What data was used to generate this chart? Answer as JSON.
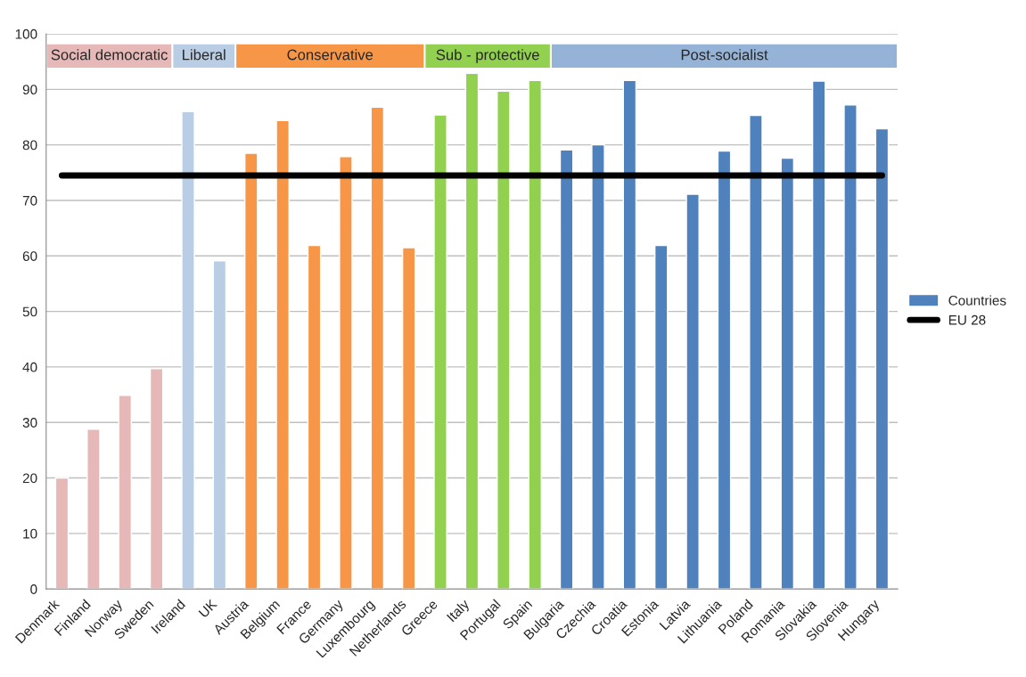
{
  "chart_data": {
    "type": "bar",
    "categories": [
      "Denmark",
      "Finland",
      "Norway",
      "Sweden",
      "Ireland",
      "UK",
      "Austria",
      "Belgium",
      "France",
      "Germany",
      "Luxembourg",
      "Netherlands",
      "Greece",
      "Italy",
      "Portugal",
      "Spain",
      "Bulgaria",
      "Czechia",
      "Croatia",
      "Estonia",
      "Latvia",
      "Lithuania",
      "Poland",
      "Romania",
      "Slovakia",
      "Slovenia",
      "Hungary"
    ],
    "series": [
      {
        "name": "Countries",
        "color": "#4f81bd",
        "colors": [
          "#e6b9b8",
          "#e6b9b8",
          "#e6b9b8",
          "#e6b9b8",
          "#b9cde5",
          "#b9cde5",
          "#f79646",
          "#f79646",
          "#f79646",
          "#f79646",
          "#f79646",
          "#f79646",
          "#92d050",
          "#92d050",
          "#92d050",
          "#92d050",
          "#4f81bd",
          "#4f81bd",
          "#4f81bd",
          "#4f81bd",
          "#4f81bd",
          "#4f81bd",
          "#4f81bd",
          "#4f81bd",
          "#4f81bd",
          "#4f81bd",
          "#4f81bd"
        ],
        "values": [
          20,
          28.8,
          34.9,
          39.7,
          86,
          59.1,
          78.5,
          84.4,
          61.9,
          77.9,
          86.8,
          61.5,
          85.4,
          92.9,
          89.7,
          91.6,
          79.1,
          80,
          91.6,
          61.9,
          71.1,
          78.9,
          85.3,
          77.6,
          91.5,
          87.2,
          82.9
        ]
      },
      {
        "name": "EU 28",
        "type": "line",
        "color": "#000000",
        "values": [
          74.5,
          74.5,
          74.5,
          74.5,
          74.5,
          74.5,
          74.5,
          74.5,
          74.5,
          74.5,
          74.5,
          74.5,
          74.5,
          74.5,
          74.5,
          74.5,
          74.5,
          74.5,
          74.5,
          74.5,
          74.5,
          74.5,
          74.5,
          74.5,
          74.5,
          74.5,
          74.5
        ]
      }
    ],
    "annotations": [
      "Social democratic",
      "Liberal",
      "Conservative",
      "Sub - protective",
      "Post-socialist"
    ],
    "ylim": [
      0,
      100
    ],
    "yticks": [
      0,
      10,
      20,
      30,
      40,
      50,
      60,
      70,
      80,
      90,
      100
    ],
    "grid": "y",
    "legend": "right",
    "marker": "none",
    "line_style": "solid"
  }
}
